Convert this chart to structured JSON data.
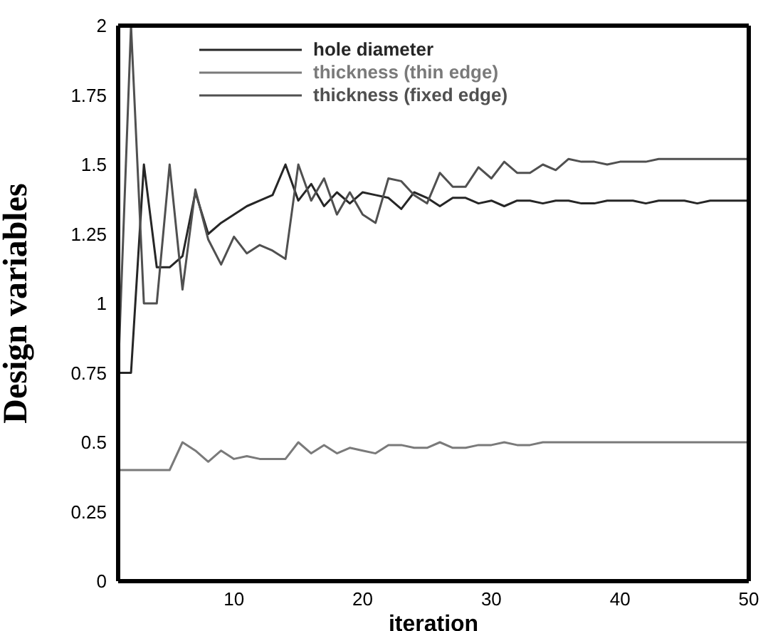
{
  "chart_data": {
    "type": "line",
    "xlabel": "iteration",
    "ylabel": "Design variables",
    "x": [
      1,
      2,
      3,
      4,
      5,
      6,
      7,
      8,
      9,
      10,
      11,
      12,
      13,
      14,
      15,
      16,
      17,
      18,
      19,
      20,
      21,
      22,
      23,
      24,
      25,
      26,
      27,
      28,
      29,
      30,
      31,
      32,
      33,
      34,
      35,
      36,
      37,
      38,
      39,
      40,
      41,
      42,
      43,
      44,
      45,
      46,
      47,
      48,
      49,
      50
    ],
    "series": [
      {
        "name": "hole diameter",
        "color": "#262626",
        "values": [
          0.75,
          0.75,
          1.5,
          1.13,
          1.13,
          1.17,
          1.4,
          1.25,
          1.29,
          1.32,
          1.35,
          1.37,
          1.39,
          1.5,
          1.37,
          1.43,
          1.35,
          1.4,
          1.36,
          1.4,
          1.39,
          1.38,
          1.34,
          1.4,
          1.38,
          1.35,
          1.38,
          1.38,
          1.36,
          1.37,
          1.35,
          1.37,
          1.37,
          1.36,
          1.37,
          1.37,
          1.36,
          1.36,
          1.37,
          1.37,
          1.37,
          1.36,
          1.37,
          1.37,
          1.37,
          1.36,
          1.37,
          1.37,
          1.37,
          1.37
        ]
      },
      {
        "name": "thickness (thin edge)",
        "color": "#7a7a7a",
        "values": [
          0.4,
          0.4,
          0.4,
          0.4,
          0.4,
          0.5,
          0.47,
          0.43,
          0.47,
          0.44,
          0.45,
          0.44,
          0.44,
          0.44,
          0.5,
          0.46,
          0.49,
          0.46,
          0.48,
          0.47,
          0.46,
          0.49,
          0.49,
          0.48,
          0.48,
          0.5,
          0.48,
          0.48,
          0.49,
          0.49,
          0.5,
          0.49,
          0.49,
          0.5,
          0.5,
          0.5,
          0.5,
          0.5,
          0.5,
          0.5,
          0.5,
          0.5,
          0.5,
          0.5,
          0.5,
          0.5,
          0.5,
          0.5,
          0.5,
          0.5
        ]
      },
      {
        "name": "thickness (fixed edge)",
        "color": "#505050",
        "values": [
          0.75,
          2,
          1.0,
          1.0,
          1.5,
          1.05,
          1.41,
          1.23,
          1.14,
          1.24,
          1.18,
          1.21,
          1.19,
          1.16,
          1.5,
          1.37,
          1.45,
          1.32,
          1.4,
          1.32,
          1.29,
          1.45,
          1.44,
          1.39,
          1.36,
          1.47,
          1.42,
          1.42,
          1.49,
          1.45,
          1.51,
          1.47,
          1.47,
          1.5,
          1.48,
          1.52,
          1.51,
          1.51,
          1.5,
          1.51,
          1.51,
          1.51,
          1.52,
          1.52,
          1.52,
          1.52,
          1.52,
          1.52,
          1.52,
          1.52
        ]
      }
    ],
    "xlim": [
      1,
      50
    ],
    "xticks": [
      10,
      20,
      30,
      40,
      50
    ],
    "ylim": [
      0,
      2
    ],
    "yticks": [
      0,
      0.25,
      0.5,
      0.75,
      1,
      1.25,
      1.5,
      1.75,
      2
    ],
    "grid": false,
    "legend": "top",
    "marker": "none",
    "line_style": "solid"
  }
}
